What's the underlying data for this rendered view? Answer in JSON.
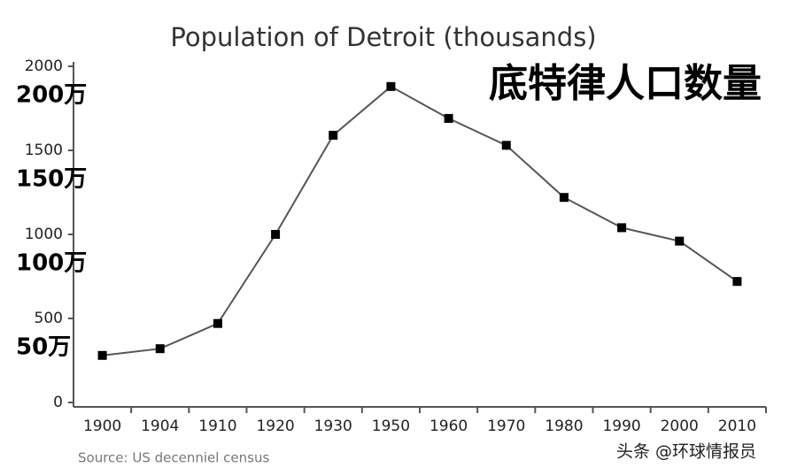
{
  "chart_data": {
    "type": "line",
    "title": "Population of Detroit (thousands)",
    "overlay_title": "底特律人口数量",
    "source": "Source: US decenniel census",
    "watermark": "头条 @环球情报员",
    "categories": [
      "1900",
      "1904",
      "1910",
      "1920",
      "1930",
      "1950",
      "1960",
      "1970",
      "1980",
      "1990",
      "2000",
      "2010"
    ],
    "values": [
      280,
      320,
      470,
      1000,
      1590,
      1880,
      1690,
      1530,
      1220,
      1040,
      960,
      720
    ],
    "color": "#000000",
    "ylim": [
      0,
      2000
    ],
    "yticks": [
      0,
      500,
      1000,
      1500,
      2000
    ],
    "secondary_tick_labels": [
      {
        "value": 500,
        "label": "50万"
      },
      {
        "value": 1000,
        "label": "100万"
      },
      {
        "value": 1500,
        "label": "150万"
      },
      {
        "value": 2000,
        "label": "200万"
      }
    ],
    "grid": false
  }
}
